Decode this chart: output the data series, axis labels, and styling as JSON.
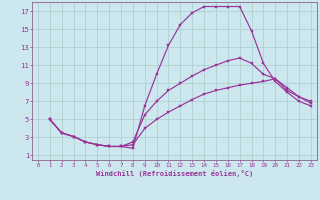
{
  "xlabel": "Windchill (Refroidissement éolien,°C)",
  "background_color": "#cce8ee",
  "grid_color": "#aacccc",
  "line_color": "#993399",
  "spine_color": "#886688",
  "xlim": [
    -0.5,
    23.5
  ],
  "ylim": [
    0.5,
    18
  ],
  "xticks": [
    0,
    1,
    2,
    3,
    4,
    5,
    6,
    7,
    8,
    9,
    10,
    11,
    12,
    13,
    14,
    15,
    16,
    17,
    18,
    19,
    20,
    21,
    22,
    23
  ],
  "yticks": [
    1,
    3,
    5,
    7,
    9,
    11,
    13,
    15,
    17
  ],
  "line1_x": [
    1,
    2,
    3,
    4,
    5,
    6,
    7,
    8,
    9,
    10,
    11,
    12,
    13,
    14,
    15,
    16,
    17,
    18,
    19,
    20,
    21,
    22,
    23
  ],
  "line1_y": [
    5.0,
    3.5,
    3.1,
    2.5,
    2.2,
    2.0,
    2.0,
    1.8,
    6.5,
    10.0,
    13.2,
    15.5,
    16.8,
    17.5,
    17.5,
    17.5,
    17.5,
    14.8,
    11.2,
    9.2,
    8.0,
    7.0,
    6.5
  ],
  "line2_x": [
    1,
    2,
    3,
    4,
    5,
    6,
    7,
    8,
    9,
    10,
    11,
    12,
    13,
    14,
    15,
    16,
    17,
    18,
    19,
    20,
    21,
    22,
    23
  ],
  "line2_y": [
    5.0,
    3.5,
    3.1,
    2.5,
    2.2,
    2.0,
    2.0,
    2.5,
    5.5,
    7.0,
    8.2,
    9.0,
    9.8,
    10.5,
    11.0,
    11.5,
    11.8,
    11.2,
    10.0,
    9.5,
    8.2,
    7.5,
    7.0
  ],
  "line3_x": [
    1,
    2,
    3,
    4,
    5,
    6,
    7,
    8,
    9,
    10,
    11,
    12,
    13,
    14,
    15,
    16,
    17,
    18,
    19,
    20,
    21,
    22,
    23
  ],
  "line3_y": [
    5.0,
    3.5,
    3.1,
    2.5,
    2.2,
    2.0,
    2.0,
    2.2,
    4.0,
    5.0,
    5.8,
    6.5,
    7.2,
    7.8,
    8.2,
    8.5,
    8.8,
    9.0,
    9.2,
    9.5,
    8.5,
    7.5,
    6.8
  ]
}
